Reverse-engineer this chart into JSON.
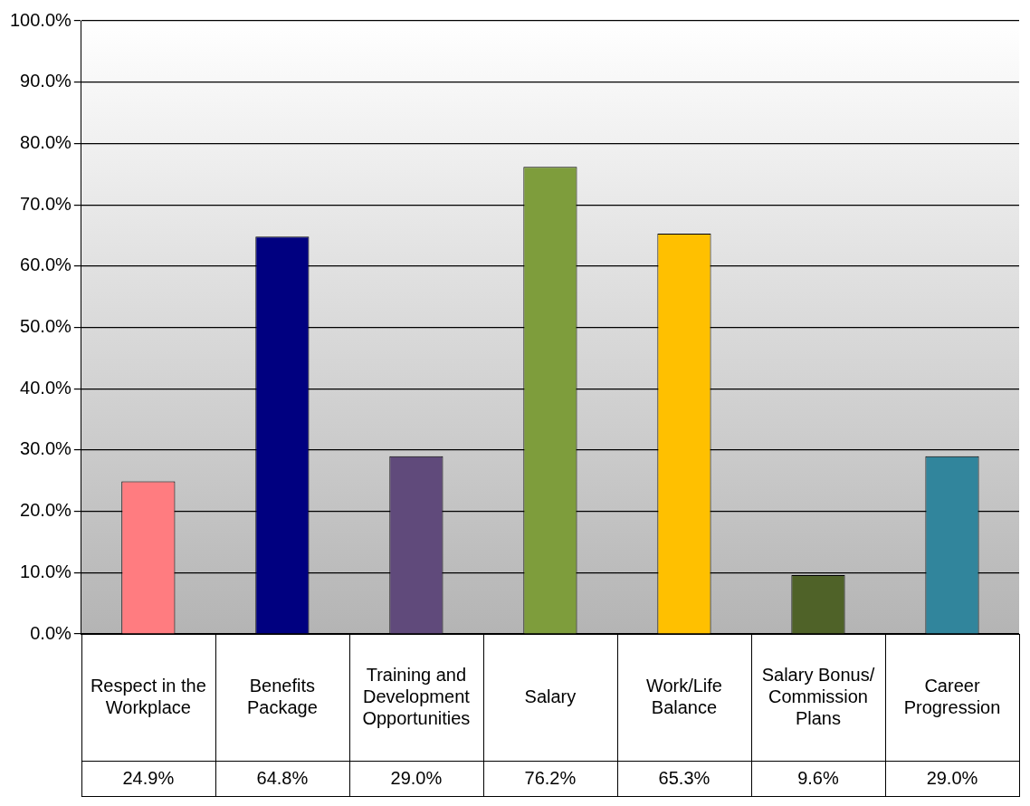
{
  "chart_data": {
    "type": "bar",
    "categories": [
      "Respect in the Workplace",
      "Benefits Package",
      "Training and Development Opportunities",
      "Salary",
      "Work/Life Balance",
      "Salary Bonus/Commission Plans",
      "Career Progression"
    ],
    "values": [
      24.9,
      64.8,
      29.0,
      76.2,
      65.3,
      9.6,
      29.0
    ],
    "colors": [
      "#ff7c80",
      "#000080",
      "#604a7b",
      "#7e9d3c",
      "#ffc000",
      "#4f6228",
      "#31859c"
    ],
    "value_labels": [
      "24.9%",
      "64.8%",
      "29.0%",
      "76.2%",
      "65.3%",
      "9.6%",
      "29.0%"
    ],
    "ylim": [
      0,
      100
    ],
    "yticks": [
      {
        "value": 0,
        "label": "0.0%"
      },
      {
        "value": 10,
        "label": "10.0%"
      },
      {
        "value": 20,
        "label": "20.0%"
      },
      {
        "value": 30,
        "label": "30.0%"
      },
      {
        "value": 40,
        "label": "40.0%"
      },
      {
        "value": 50,
        "label": "50.0%"
      },
      {
        "value": 60,
        "label": "60.0%"
      },
      {
        "value": 70,
        "label": "70.0%"
      },
      {
        "value": 80,
        "label": "80.0%"
      },
      {
        "value": 90,
        "label": "90.0%"
      },
      {
        "value": 100,
        "label": "100.0%"
      }
    ],
    "grid": "y",
    "legend": false
  }
}
